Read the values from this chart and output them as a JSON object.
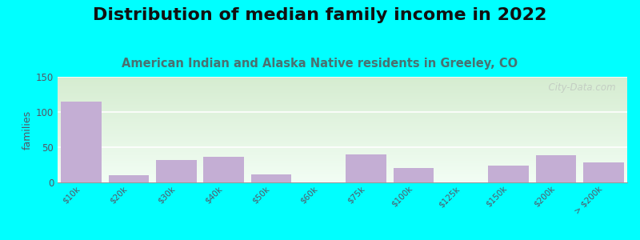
{
  "title": "Distribution of median family income in 2022",
  "subtitle": "American Indian and Alaska Native residents in Greeley, CO",
  "categories": [
    "$10k",
    "$20k",
    "$30k",
    "$40k",
    "$50k",
    "$60k",
    "$75k",
    "$100k",
    "$125k",
    "$150k",
    "$200k",
    "> $200k"
  ],
  "values": [
    115,
    10,
    32,
    36,
    11,
    0,
    40,
    20,
    0,
    24,
    39,
    28
  ],
  "bar_color": "#c4aed4",
  "ylabel": "families",
  "ylim": [
    0,
    150
  ],
  "yticks": [
    0,
    50,
    100,
    150
  ],
  "background_color": "#00ffff",
  "grad_top_color": "#d5ecd0",
  "grad_bot_color": "#f2fdf4",
  "grid_color": "#ffffff",
  "title_fontsize": 16,
  "subtitle_fontsize": 10.5,
  "watermark": "  City-Data.com",
  "title_color": "#111111",
  "subtitle_color": "#4a7070",
  "ylabel_color": "#555566",
  "tick_color": "#555566"
}
